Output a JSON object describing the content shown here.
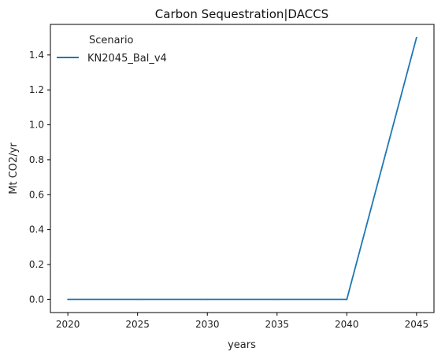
{
  "chart_data": {
    "type": "line",
    "title": "Carbon Sequestration|DACCS",
    "xlabel": "years",
    "ylabel": "Mt CO2/yr",
    "x": [
      2020,
      2025,
      2030,
      2035,
      2040,
      2045
    ],
    "series": [
      {
        "name": "KN2045_Bal_v4",
        "values": [
          0.0,
          0.0,
          0.0,
          0.0,
          0.0,
          1.5
        ],
        "color": "#1f77b4"
      }
    ],
    "xticks": [
      "2020",
      "2025",
      "2030",
      "2035",
      "2040",
      "2045"
    ],
    "yticks": [
      "0.0",
      "0.2",
      "0.4",
      "0.6",
      "0.8",
      "1.0",
      "1.2",
      "1.4"
    ],
    "xlim": [
      2018.75,
      2046.25
    ],
    "ylim": [
      -0.075,
      1.575
    ],
    "grid": false,
    "legend": {
      "title": "Scenario",
      "placement": "top-left"
    }
  }
}
